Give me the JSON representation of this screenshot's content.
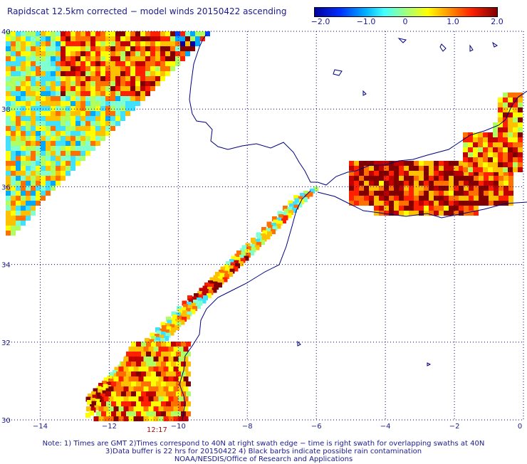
{
  "title": "Rapidscat 12.5km corrected − model winds 20150422 ascending",
  "colorbar": {
    "labels": [
      "−2.0",
      "−1.0",
      "0",
      "1.0",
      "2.0"
    ],
    "min": -2.0,
    "max": 2.0
  },
  "map": {
    "lon_range": [
      -15,
      0
    ],
    "lat_range": [
      30,
      40
    ],
    "x_ticks": [
      {
        "value": -14,
        "label": "−14"
      },
      {
        "value": -12,
        "label": "−12"
      },
      {
        "value": -10,
        "label": "−10"
      },
      {
        "value": -8,
        "label": "−8"
      },
      {
        "value": -6,
        "label": "−6"
      },
      {
        "value": -4,
        "label": "−4"
      },
      {
        "value": -2,
        "label": "−2"
      },
      {
        "value": 0,
        "label": "0"
      }
    ],
    "y_ticks": [
      {
        "value": 40,
        "label": "40"
      },
      {
        "value": 38,
        "label": "38"
      },
      {
        "value": 36,
        "label": "36"
      },
      {
        "value": 34,
        "label": "34"
      },
      {
        "value": 32,
        "label": "32"
      },
      {
        "value": 30,
        "label": "30"
      }
    ],
    "grid": "dotted",
    "land_outline_color": "#000080"
  },
  "timestamp": "12:17",
  "notes": {
    "line1": "Note: 1) Times are GMT 2)Times correspond to 40N at right swath edge − time is right swath for overlapping swaths at 40N",
    "line2": "3)Data buffer is 22 hrs for 20150422 4) Black barbs indicate possible rain contamination",
    "line3": "NOAA/NESDIS/Office of Research and Applications"
  }
}
